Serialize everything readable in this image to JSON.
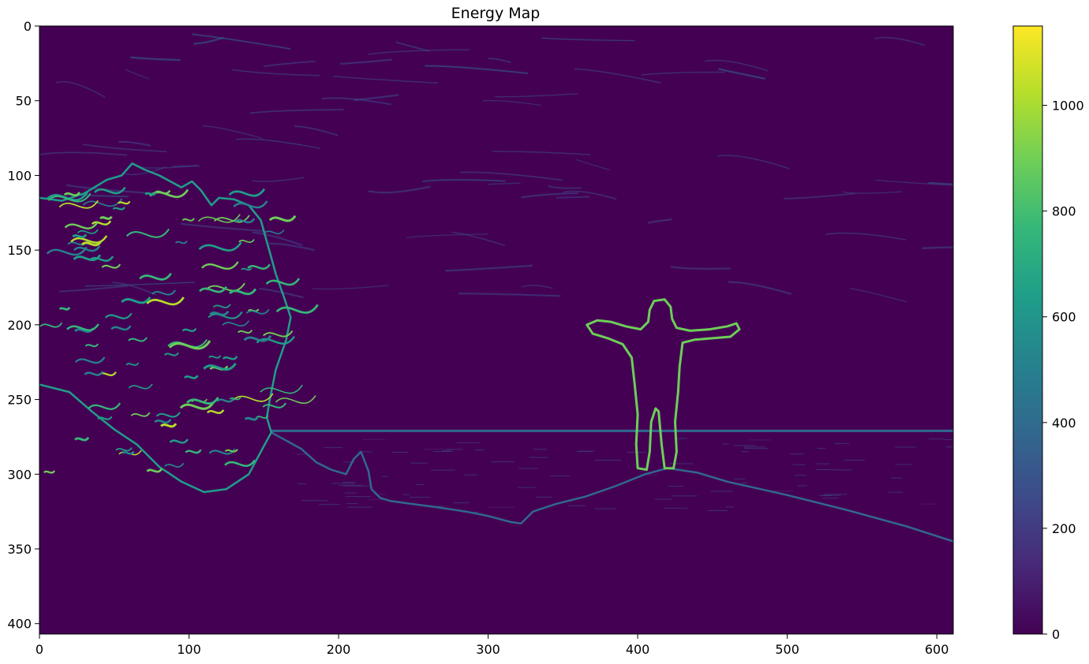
{
  "chart_data": {
    "type": "heatmap",
    "title": "Energy Map",
    "xlabel": "",
    "ylabel": "",
    "x_range": [
      0,
      611
    ],
    "y_range": [
      0,
      407
    ],
    "x_ticks": [
      0,
      100,
      200,
      300,
      400,
      500,
      600
    ],
    "y_ticks": [
      0,
      50,
      100,
      150,
      200,
      250,
      300,
      350,
      400
    ],
    "colorbar": {
      "range": [
        0,
        1150
      ],
      "ticks": [
        0,
        200,
        400,
        600,
        800,
        1000
      ],
      "colormap": "viridis",
      "colors": [
        "#440154",
        "#482878",
        "#3e4a89",
        "#31688e",
        "#26828e",
        "#1f9e89",
        "#35b779",
        "#6ece58",
        "#b5de2b",
        "#fde725"
      ]
    },
    "grid": false,
    "features": {
      "horizon_y": 271,
      "figure_outline": [
        [
          373,
          197
        ],
        [
          382,
          198
        ],
        [
          392,
          201
        ],
        [
          402,
          203
        ],
        [
          407,
          198
        ],
        [
          408,
          190
        ],
        [
          411,
          184
        ],
        [
          418,
          183
        ],
        [
          422,
          188
        ],
        [
          423,
          196
        ],
        [
          426,
          202
        ],
        [
          435,
          204
        ],
        [
          448,
          203
        ],
        [
          460,
          201
        ],
        [
          466,
          199
        ],
        [
          468,
          203
        ],
        [
          462,
          208
        ],
        [
          450,
          209
        ],
        [
          438,
          210
        ],
        [
          430,
          212
        ],
        [
          428,
          228
        ],
        [
          427,
          245
        ],
        [
          425,
          265
        ],
        [
          426,
          285
        ],
        [
          424,
          296
        ],
        [
          418,
          296
        ],
        [
          416,
          280
        ],
        [
          414,
          258
        ],
        [
          412,
          256
        ],
        [
          409,
          265
        ],
        [
          408,
          285
        ],
        [
          406,
          297
        ],
        [
          400,
          296
        ],
        [
          399,
          280
        ],
        [
          400,
          260
        ],
        [
          398,
          240
        ],
        [
          396,
          222
        ],
        [
          390,
          213
        ],
        [
          380,
          209
        ],
        [
          370,
          206
        ],
        [
          366,
          200
        ]
      ],
      "tree_outline": [
        [
          0,
          115
        ],
        [
          15,
          117
        ],
        [
          30,
          112
        ],
        [
          45,
          103
        ],
        [
          55,
          100
        ],
        [
          62,
          92
        ],
        [
          70,
          96
        ],
        [
          80,
          100
        ],
        [
          95,
          108
        ],
        [
          102,
          104
        ],
        [
          108,
          110
        ],
        [
          115,
          120
        ],
        [
          120,
          115
        ],
        [
          130,
          116
        ],
        [
          140,
          120
        ],
        [
          148,
          130
        ],
        [
          155,
          155
        ],
        [
          158,
          166
        ],
        [
          163,
          180
        ],
        [
          168,
          195
        ],
        [
          165,
          210
        ],
        [
          158,
          230
        ],
        [
          154,
          250
        ],
        [
          152,
          262
        ],
        [
          155,
          272
        ],
        [
          148,
          285
        ],
        [
          140,
          300
        ],
        [
          125,
          310
        ],
        [
          110,
          312
        ],
        [
          95,
          305
        ],
        [
          80,
          295
        ],
        [
          65,
          280
        ],
        [
          50,
          270
        ],
        [
          35,
          258
        ],
        [
          20,
          245
        ],
        [
          0,
          240
        ]
      ],
      "shore_outline": [
        [
          155,
          272
        ],
        [
          175,
          283
        ],
        [
          185,
          292
        ],
        [
          195,
          297
        ],
        [
          205,
          300
        ],
        [
          210,
          290
        ],
        [
          215,
          285
        ],
        [
          220,
          298
        ],
        [
          222,
          310
        ],
        [
          228,
          316
        ],
        [
          235,
          318
        ],
        [
          250,
          320
        ],
        [
          265,
          322
        ],
        [
          285,
          325
        ],
        [
          300,
          328
        ],
        [
          315,
          332
        ],
        [
          322,
          333
        ],
        [
          330,
          325
        ],
        [
          345,
          320
        ],
        [
          365,
          315
        ],
        [
          385,
          308
        ],
        [
          405,
          300
        ],
        [
          420,
          296
        ],
        [
          440,
          299
        ],
        [
          460,
          305
        ],
        [
          500,
          314
        ],
        [
          540,
          324
        ],
        [
          580,
          335
        ],
        [
          611,
          345
        ]
      ]
    }
  }
}
